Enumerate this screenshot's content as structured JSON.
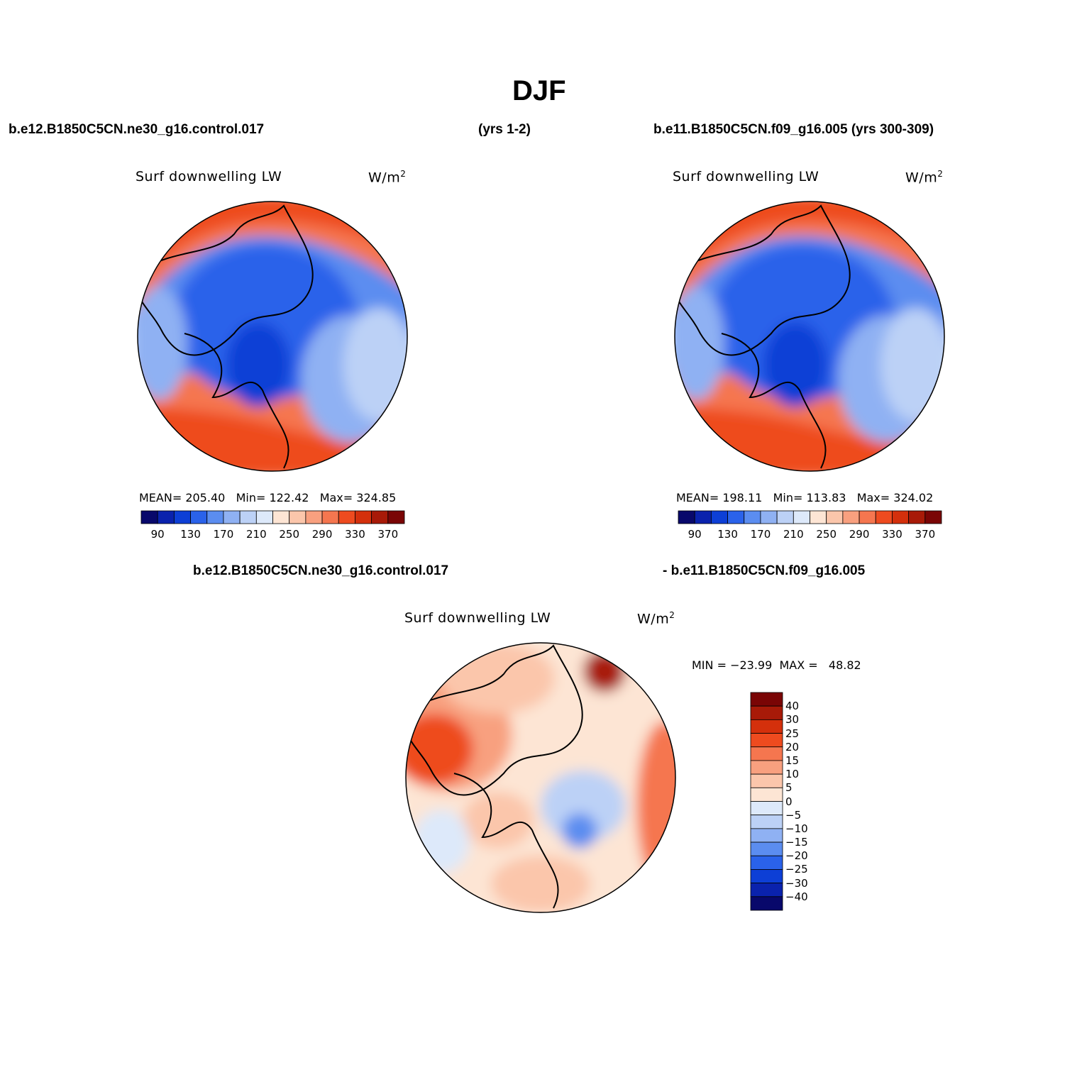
{
  "page": {
    "title": "DJF",
    "left_case": "b.e12.B1850C5CN.ne30_g16.control.017",
    "left_years": "(yrs 1-2)",
    "right_case_header": "b.e11.B1850C5CN.f09_g16.005 (yrs 300-309)",
    "diff_left": "b.e12.B1850C5CN.ne30_g16.control.017",
    "diff_right": "- b.e11.B1850C5CN.f09_g16.005"
  },
  "panels": [
    {
      "variable": "Surf downwelling LW",
      "units": "W/m",
      "units_sup": "2",
      "stats": "MEAN= 205.40   Min= 122.42   Max= 324.85"
    },
    {
      "variable": "Surf downwelling LW",
      "units": "W/m",
      "units_sup": "2",
      "stats": "MEAN= 198.11   Min= 113.83   Max= 324.02"
    },
    {
      "variable": "Surf downwelling LW",
      "units": "W/m",
      "units_sup": "2",
      "stats": "MIN = −23.99  MAX =   48.82"
    }
  ],
  "colorbar_h": {
    "labels": [
      "90",
      "130",
      "170",
      "210",
      "250",
      "290",
      "330",
      "370"
    ],
    "colors": [
      "#08086b",
      "#0a22ad",
      "#0d3fd6",
      "#2a62ea",
      "#5b8df0",
      "#8fb1f3",
      "#bcd1f6",
      "#dde9fa",
      "#fde5d4",
      "#fbc6ab",
      "#f8a07f",
      "#f5764f",
      "#ee4b1f",
      "#d4300c",
      "#a81a08",
      "#7a0505"
    ]
  },
  "colorbar_v": {
    "labels": [
      "40",
      "30",
      "25",
      "20",
      "15",
      "10",
      "5",
      "0",
      "−5",
      "−10",
      "−15",
      "−20",
      "−25",
      "−30",
      "−40"
    ],
    "colors": [
      "#7a0505",
      "#a81a08",
      "#d4300c",
      "#ee4b1f",
      "#f5764f",
      "#f8a07f",
      "#fbc6ab",
      "#fde5d4",
      "#dde9fa",
      "#bcd1f6",
      "#8fb1f3",
      "#5b8df0",
      "#2a62ea",
      "#0d3fd6",
      "#0a22ad",
      "#08086b"
    ]
  }
}
